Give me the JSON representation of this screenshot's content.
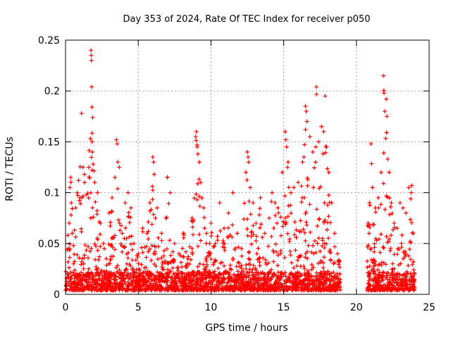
{
  "chart_data": {
    "type": "scatter",
    "title": "Day 353 of 2024, Rate Of TEC Index for receiver p050",
    "xlabel": "GPS time / hours",
    "ylabel": "ROTI / TECUs",
    "xlim": [
      0,
      25
    ],
    "ylim": [
      0,
      0.25
    ],
    "xticks": [
      0,
      5,
      10,
      15,
      20,
      25
    ],
    "yticks": [
      0,
      0.05,
      0.1,
      0.15,
      0.2,
      0.25
    ],
    "xtick_labels": [
      "0",
      "5",
      "10",
      "15",
      "20",
      "25"
    ],
    "ytick_labels": [
      "0",
      "0.05",
      "0.1",
      "0.15",
      "0.2",
      "0.25"
    ],
    "grid": true,
    "marker": "+",
    "color": "#ff0000",
    "gap_hours": [
      18.9,
      20.7
    ],
    "series": [
      {
        "points": [
          [
            0.05,
            0.008
          ],
          [
            0.12,
            0.02
          ],
          [
            0.18,
            0.045
          ],
          [
            0.25,
            0.07
          ],
          [
            0.3,
            0.105
          ],
          [
            0.35,
            0.115
          ],
          [
            0.4,
            0.09
          ],
          [
            0.45,
            0.06
          ],
          [
            0.55,
            0.03
          ],
          [
            0.6,
            0.012
          ],
          [
            0.7,
            0.085
          ],
          [
            0.8,
            0.1
          ],
          [
            0.9,
            0.112
          ],
          [
            1.0,
            0.095
          ],
          [
            1.1,
            0.178
          ],
          [
            1.2,
            0.125
          ],
          [
            1.3,
            0.118
          ],
          [
            1.45,
            0.098
          ],
          [
            1.6,
            0.125
          ],
          [
            1.75,
            0.24
          ],
          [
            1.77,
            0.235
          ],
          [
            1.78,
            0.23
          ],
          [
            1.8,
            0.204
          ],
          [
            1.82,
            0.15
          ],
          [
            1.85,
            0.14
          ],
          [
            1.9,
            0.128
          ],
          [
            2.0,
            0.11
          ],
          [
            2.2,
            0.1
          ],
          [
            2.4,
            0.07
          ],
          [
            2.6,
            0.05
          ],
          [
            2.8,
            0.035
          ],
          [
            3.0,
            0.08
          ],
          [
            3.2,
            0.095
          ],
          [
            3.4,
            0.115
          ],
          [
            3.5,
            0.152
          ],
          [
            3.55,
            0.148
          ],
          [
            3.6,
            0.13
          ],
          [
            3.7,
            0.125
          ],
          [
            3.9,
            0.06
          ],
          [
            4.1,
            0.09
          ],
          [
            4.3,
            0.1
          ],
          [
            4.5,
            0.085
          ],
          [
            4.7,
            0.05
          ],
          [
            5.0,
            0.04
          ],
          [
            5.3,
            0.065
          ],
          [
            5.6,
            0.06
          ],
          [
            5.8,
            0.09
          ],
          [
            6.0,
            0.135
          ],
          [
            6.05,
            0.13
          ],
          [
            6.1,
            0.118
          ],
          [
            6.3,
            0.085
          ],
          [
            6.6,
            0.06
          ],
          [
            6.9,
            0.075
          ],
          [
            7.0,
            0.115
          ],
          [
            7.2,
            0.1
          ],
          [
            7.5,
            0.05
          ],
          [
            7.8,
            0.04
          ],
          [
            8.1,
            0.06
          ],
          [
            8.4,
            0.035
          ],
          [
            8.7,
            0.075
          ],
          [
            8.95,
            0.155
          ],
          [
            9.0,
            0.16
          ],
          [
            9.05,
            0.145
          ],
          [
            9.1,
            0.138
          ],
          [
            9.2,
            0.13
          ],
          [
            9.3,
            0.11
          ],
          [
            9.5,
            0.085
          ],
          [
            9.7,
            0.06
          ],
          [
            10.0,
            0.07
          ],
          [
            10.3,
            0.05
          ],
          [
            10.6,
            0.09
          ],
          [
            10.9,
            0.065
          ],
          [
            11.2,
            0.08
          ],
          [
            11.5,
            0.1
          ],
          [
            11.8,
            0.06
          ],
          [
            12.1,
            0.045
          ],
          [
            12.4,
            0.12
          ],
          [
            12.5,
            0.14
          ],
          [
            12.55,
            0.135
          ],
          [
            12.6,
            0.13
          ],
          [
            12.7,
            0.105
          ],
          [
            12.9,
            0.09
          ],
          [
            13.1,
            0.07
          ],
          [
            13.4,
            0.095
          ],
          [
            13.7,
            0.06
          ],
          [
            14.0,
            0.075
          ],
          [
            14.2,
            0.1
          ],
          [
            14.4,
            0.09
          ],
          [
            14.6,
            0.085
          ],
          [
            14.9,
            0.12
          ],
          [
            15.1,
            0.16
          ],
          [
            15.15,
            0.152
          ],
          [
            15.2,
            0.145
          ],
          [
            15.3,
            0.13
          ],
          [
            15.5,
            0.1
          ],
          [
            15.7,
            0.105
          ],
          [
            16.0,
            0.11
          ],
          [
            16.3,
            0.13
          ],
          [
            16.5,
            0.185
          ],
          [
            16.55,
            0.18
          ],
          [
            16.6,
            0.17
          ],
          [
            16.8,
            0.155
          ],
          [
            17.0,
            0.14
          ],
          [
            17.2,
            0.145
          ],
          [
            17.25,
            0.204
          ],
          [
            17.4,
            0.15
          ],
          [
            17.6,
            0.165
          ],
          [
            17.75,
            0.16
          ],
          [
            17.85,
            0.195
          ],
          [
            17.95,
            0.145
          ],
          [
            18.1,
            0.12
          ],
          [
            18.3,
            0.09
          ],
          [
            18.5,
            0.06
          ],
          [
            18.7,
            0.04
          ],
          [
            18.85,
            0.02
          ],
          [
            20.8,
            0.07
          ],
          [
            20.9,
            0.09
          ],
          [
            21.0,
            0.148
          ],
          [
            21.1,
            0.105
          ],
          [
            21.3,
            0.085
          ],
          [
            21.5,
            0.095
          ],
          [
            21.7,
            0.12
          ],
          [
            21.85,
            0.215
          ],
          [
            21.9,
            0.198
          ],
          [
            21.95,
            0.18
          ],
          [
            22.05,
            0.192
          ],
          [
            22.1,
            0.175
          ],
          [
            22.15,
            0.133
          ],
          [
            22.25,
            0.12
          ],
          [
            22.4,
            0.09
          ],
          [
            22.6,
            0.07
          ],
          [
            22.8,
            0.065
          ],
          [
            23.0,
            0.09
          ],
          [
            23.2,
            0.085
          ],
          [
            23.4,
            0.08
          ],
          [
            23.6,
            0.105
          ],
          [
            23.8,
            0.107
          ],
          [
            23.9,
            0.06
          ],
          [
            24.0,
            0.02
          ]
        ]
      }
    ]
  }
}
